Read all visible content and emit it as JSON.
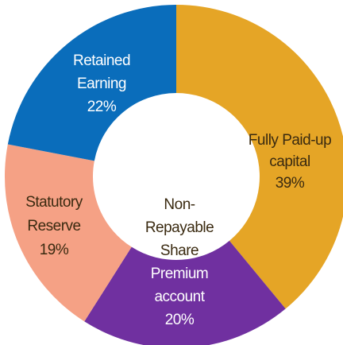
{
  "chart_data": {
    "type": "donut",
    "categories": [
      "Fully Paid-up capital",
      "Non-Repayable Share Premium account",
      "Statutory Reserve",
      "Retained Earning"
    ],
    "values": [
      39,
      20,
      19,
      22
    ],
    "value_labels": [
      "39%",
      "20%",
      "19%",
      "22%"
    ],
    "colors": [
      "#E5A526",
      "#7030A0",
      "#F5A185",
      "#0A6DBB"
    ]
  }
}
